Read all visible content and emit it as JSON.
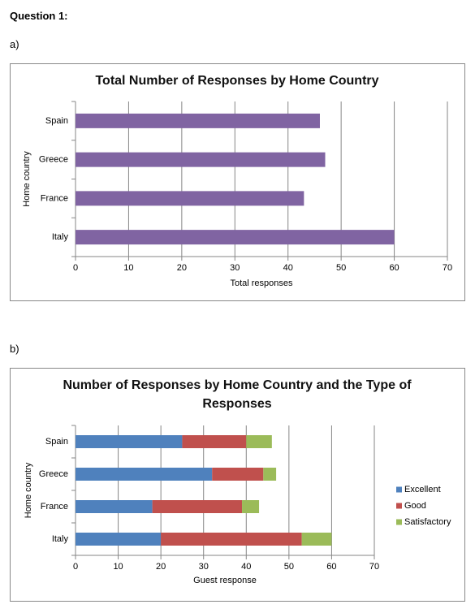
{
  "heading": "Question 1:",
  "parts": [
    "a)",
    "b)"
  ],
  "chart_data": [
    {
      "type": "bar",
      "orientation": "horizontal",
      "stacked": false,
      "title": "Total Number of Responses by Home Country",
      "x_label": "Total responses",
      "y_label": "Home country",
      "categories": [
        "Italy",
        "France",
        "Greece",
        "Spain"
      ],
      "series": [
        {
          "name": null,
          "color": "#8064a2",
          "values": [
            60,
            43,
            47,
            46
          ]
        }
      ],
      "xlim": [
        0,
        70
      ],
      "xticks": [
        0,
        10,
        20,
        30,
        40,
        50,
        60,
        70
      ],
      "grid": true,
      "legend": null
    },
    {
      "type": "bar",
      "orientation": "horizontal",
      "stacked": true,
      "title": "Number of Responses by Home Country and the Type of Responses",
      "x_label": "Guest response",
      "y_label": "Home country",
      "categories": [
        "Italy",
        "France",
        "Greece",
        "Spain"
      ],
      "series": [
        {
          "name": "Excellent",
          "color": "#4f81bd",
          "values": [
            20,
            18,
            32,
            25
          ]
        },
        {
          "name": "Good",
          "color": "#c0504d",
          "values": [
            33,
            21,
            12,
            15
          ]
        },
        {
          "name": "Satisfactory",
          "color": "#9bbb59",
          "values": [
            7,
            4,
            3,
            6
          ]
        }
      ],
      "xlim": [
        0,
        70
      ],
      "xticks": [
        0,
        10,
        20,
        30,
        40,
        50,
        60,
        70
      ],
      "grid": true,
      "legend": "right"
    }
  ]
}
